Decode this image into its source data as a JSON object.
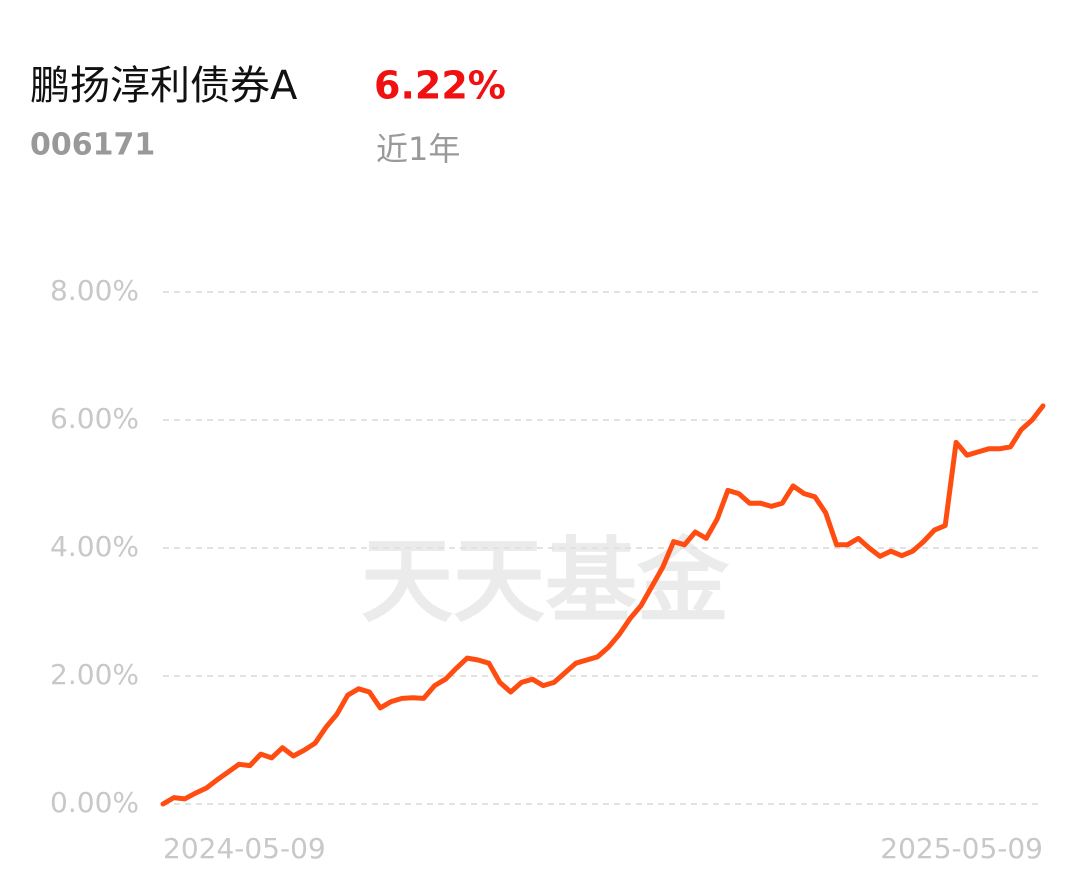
{
  "header": {
    "title": "鹏扬淳利债券A",
    "return": "6.22%",
    "code": "006171",
    "period": "近1年"
  },
  "watermark": "天天基金",
  "chart_data": {
    "type": "line",
    "categories": [
      "2024-05-09",
      null,
      null,
      null,
      null,
      null,
      null,
      null,
      null,
      null,
      null,
      null,
      null,
      null,
      null,
      null,
      null,
      null,
      null,
      null,
      null,
      null,
      null,
      null,
      null,
      null,
      null,
      null,
      null,
      null,
      null,
      null,
      null,
      null,
      null,
      null,
      null,
      null,
      null,
      null,
      null,
      null,
      null,
      null,
      null,
      null,
      null,
      null,
      null,
      null,
      null,
      null,
      null,
      null,
      null,
      null,
      null,
      null,
      null,
      null,
      null,
      null,
      null,
      null,
      null,
      null,
      null,
      null,
      null,
      null,
      null,
      null,
      null,
      null,
      null,
      null,
      null,
      null,
      null,
      null,
      null,
      "2025-05-09"
    ],
    "series": [
      {
        "color": "#ff4d12",
        "values": [
          0,
          0.1,
          0.08,
          0.17,
          0.25,
          0.38,
          0.5,
          0.62,
          0.6,
          0.78,
          0.72,
          0.88,
          0.75,
          0.84,
          0.95,
          1.2,
          1.4,
          1.7,
          1.8,
          1.75,
          1.5,
          1.6,
          1.65,
          1.66,
          1.65,
          1.85,
          1.95,
          2.12,
          2.28,
          2.25,
          2.2,
          1.9,
          1.75,
          1.9,
          1.95,
          1.85,
          1.9,
          2.05,
          2.2,
          2.25,
          2.3,
          2.45,
          2.65,
          2.9,
          3.1,
          3.4,
          3.7,
          4.1,
          4.05,
          4.25,
          4.15,
          4.45,
          4.9,
          4.85,
          4.7,
          4.7,
          4.65,
          4.7,
          4.97,
          4.85,
          4.8,
          4.55,
          4.05,
          4.05,
          4.15,
          4.0,
          3.87,
          3.95,
          3.88,
          3.95,
          4.1,
          4.28,
          4.35,
          5.65,
          5.45,
          5.5,
          5.55,
          5.55,
          5.58,
          5.85,
          6.0,
          6.22
        ]
      }
    ],
    "ylim": [
      0,
      8
    ],
    "yticks": [
      {
        "value": 0,
        "label": "0.00%"
      },
      {
        "value": 2,
        "label": "2.00%"
      },
      {
        "value": 4,
        "label": "4.00%"
      },
      {
        "value": 6,
        "label": "6.00%"
      },
      {
        "value": 8,
        "label": "8.00%"
      }
    ],
    "grid": true
  }
}
